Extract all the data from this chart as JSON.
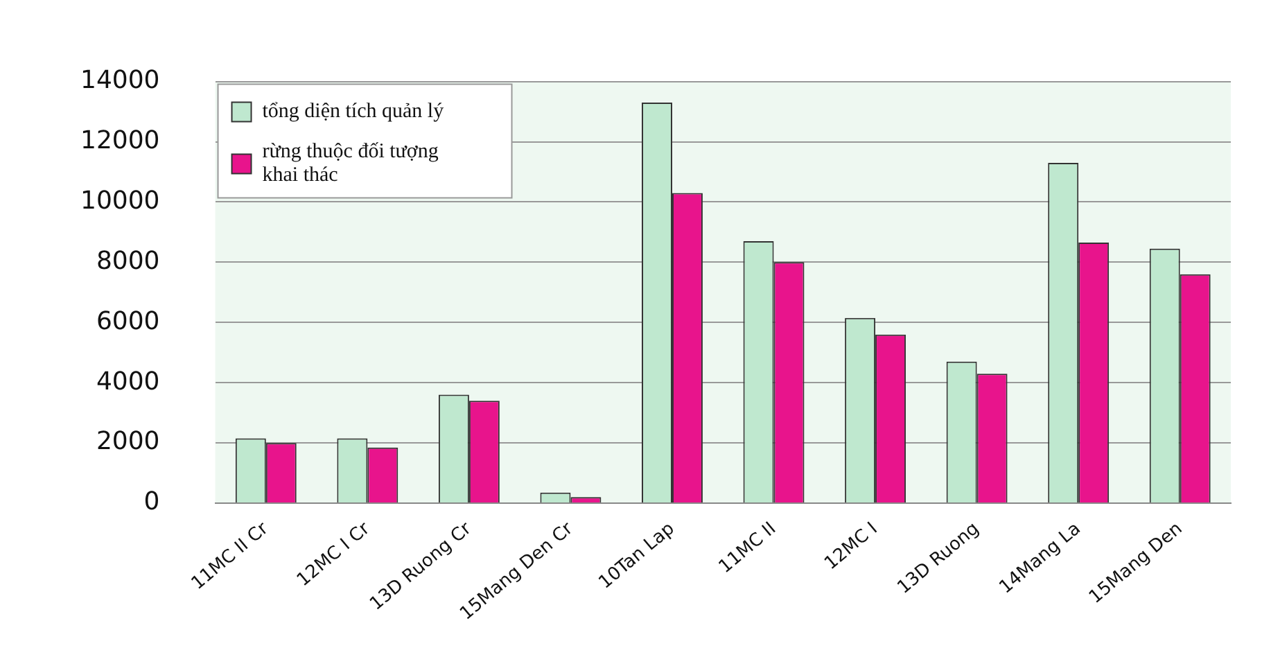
{
  "chart_data": {
    "type": "bar",
    "categories": [
      "11MC II Cr",
      "12MC I Cr",
      "13D Ruong Cr",
      "15Mang Den Cr",
      "10Tan Lap",
      "11MC II",
      "12MC I",
      "13D Ruong",
      "14Mang La",
      "15Mang Den"
    ],
    "series": [
      {
        "name": "tổng diện tích quản lý",
        "color": "#bfe8cf",
        "values": [
          2150,
          2150,
          3600,
          350,
          13300,
          8700,
          6150,
          4700,
          11300,
          8450
        ]
      },
      {
        "name": "rừng thuộc đối tượng khai thác",
        "color": "#e8148c",
        "values": [
          2000,
          1850,
          3400,
          200,
          10300,
          8000,
          5600,
          4300,
          8650,
          7600
        ]
      }
    ],
    "ylim": [
      0,
      14000
    ],
    "yticks": [
      0,
      2000,
      4000,
      6000,
      8000,
      10000,
      12000,
      14000
    ],
    "grid": "y",
    "legend": "top left"
  }
}
